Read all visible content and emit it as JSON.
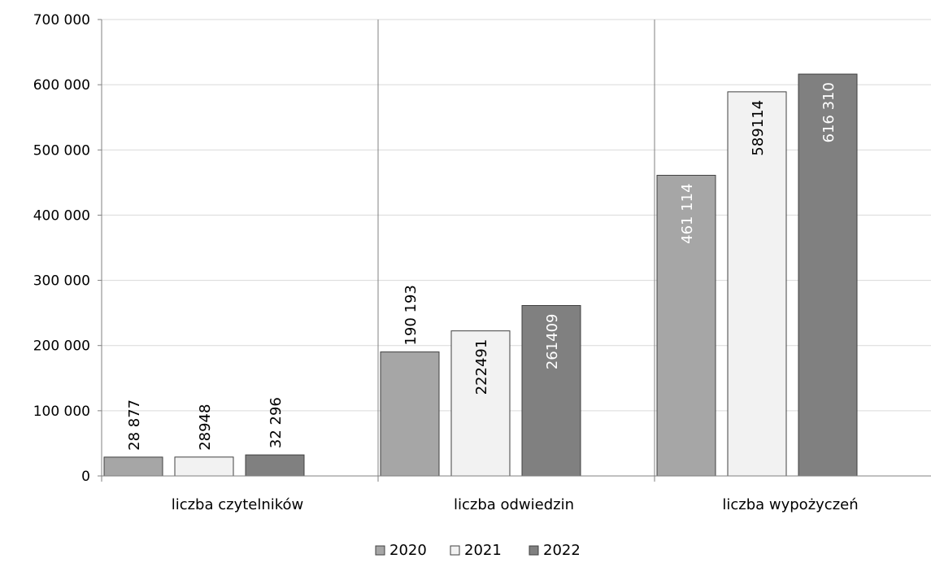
{
  "chart_data": {
    "type": "bar",
    "title": "",
    "xlabel": "",
    "ylabel": "",
    "ylim": [
      0,
      700000
    ],
    "yticks": [
      0,
      100000,
      200000,
      300000,
      400000,
      500000,
      600000,
      700000
    ],
    "ytick_labels": [
      "0",
      "100 000",
      "200 000",
      "300 000",
      "400 000",
      "500 000",
      "600 000",
      "700 000"
    ],
    "grid": true,
    "legend_position": "bottom-center",
    "categories": [
      "liczba czytelników",
      "liczba odwiedzin",
      "liczba wypożyczeń"
    ],
    "series": [
      {
        "name": "2020",
        "color": "#a6a6a6",
        "label_color": "#ffffff",
        "values": [
          28877,
          190193,
          461114
        ],
        "labels": [
          "28 877",
          "190 193",
          "461 114"
        ]
      },
      {
        "name": "2021",
        "color": "#f2f2f2",
        "label_color": "#000000",
        "values": [
          28948,
          222491,
          589114
        ],
        "labels": [
          "28948",
          "222491",
          "589114"
        ]
      },
      {
        "name": "2022",
        "color": "#808080",
        "label_color": "#ffffff",
        "values": [
          32296,
          261409,
          616310
        ],
        "labels": [
          "32 296",
          "261409",
          "616 310"
        ]
      }
    ]
  }
}
